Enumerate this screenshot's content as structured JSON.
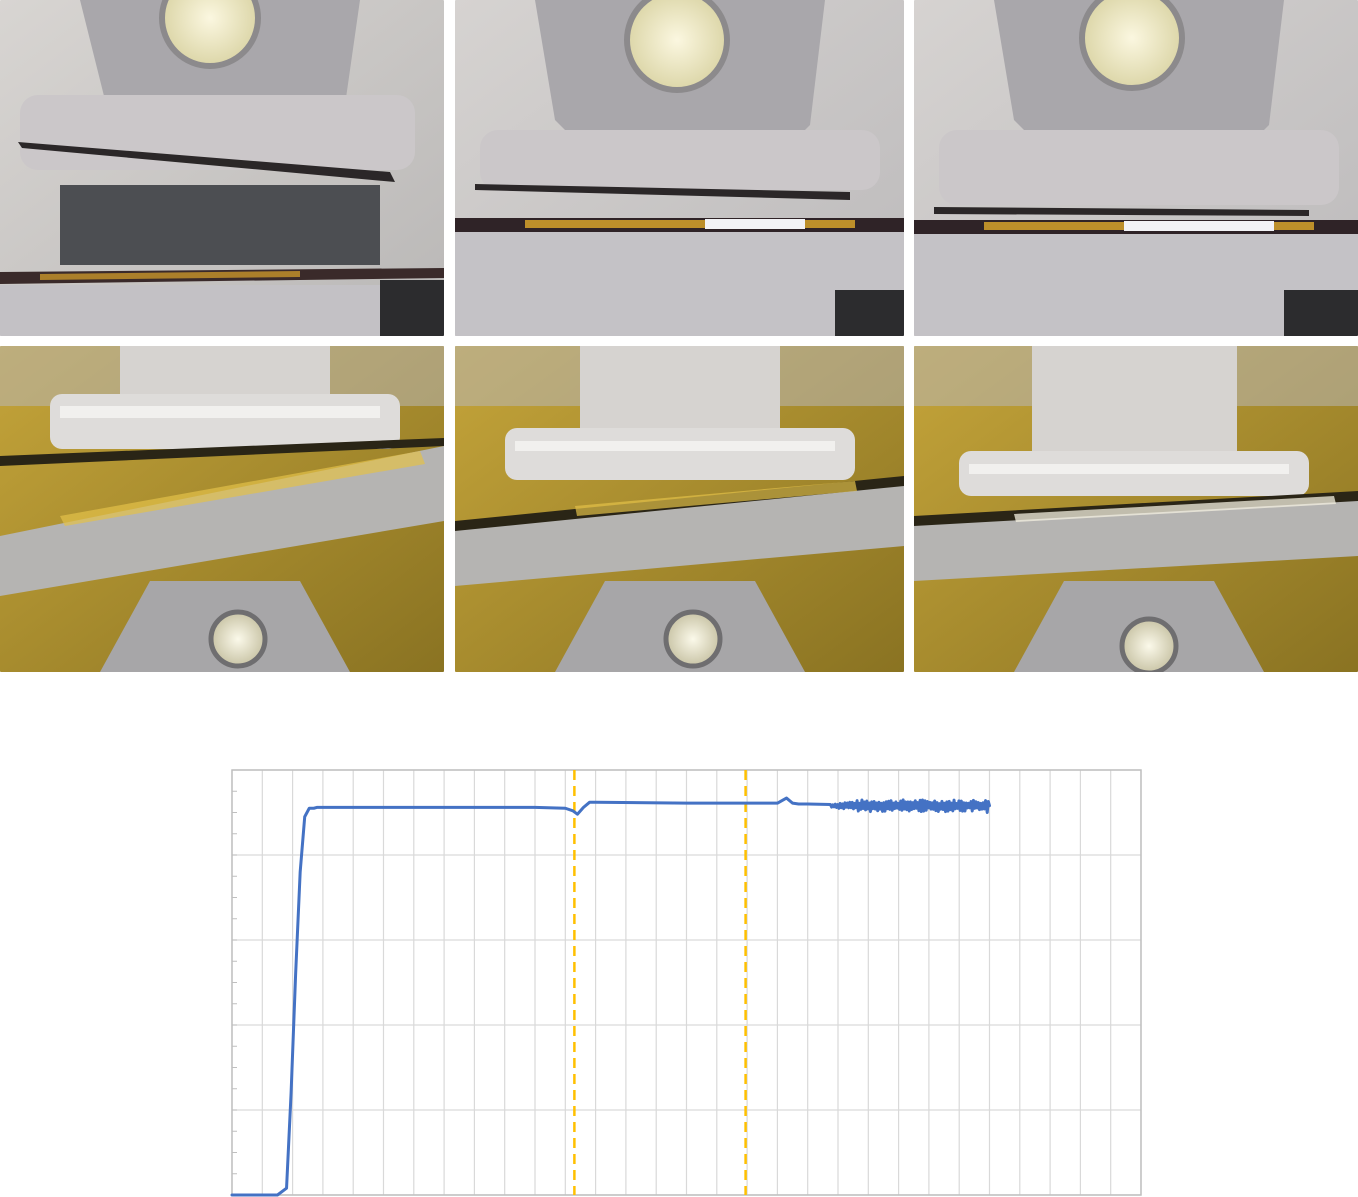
{
  "photos": {
    "rows": 2,
    "cols": 3,
    "panels": [
      {
        "row": 1,
        "col": 1,
        "name": "side-view-separated"
      },
      {
        "row": 1,
        "col": 2,
        "name": "side-view-contact"
      },
      {
        "row": 1,
        "col": 3,
        "name": "side-view-pressed"
      },
      {
        "row": 2,
        "col": 1,
        "name": "angled-view-separated"
      },
      {
        "row": 2,
        "col": 2,
        "name": "angled-view-contact"
      },
      {
        "row": 2,
        "col": 3,
        "name": "angled-view-pressed"
      }
    ],
    "colors": {
      "background_row1": "#d9d6d4",
      "background_row2": "#c9a93a",
      "fixture": "#a8a8ad",
      "hole": "#f4f0cf",
      "film_edge": "#d8a52a"
    }
  },
  "chart_data": {
    "type": "line",
    "title": "",
    "xlabel": "",
    "ylabel": "",
    "xlim": [
      0,
      60
    ],
    "ylim": [
      0,
      5
    ],
    "x_major_step": 2,
    "y_major_step": 1,
    "y_minor_step": 0.25,
    "grid": true,
    "tick_labels_visible": false,
    "series": [
      {
        "color": "#4472c4",
        "x": [
          0,
          1,
          2,
          3,
          3.6,
          3.9,
          4.2,
          4.5,
          4.8,
          5.1,
          5.4,
          5.6,
          6.0,
          10,
          15,
          20,
          22,
          22.5,
          22.8,
          23.2,
          23.6,
          24,
          30,
          35,
          36,
          36.6,
          37,
          37.4,
          38,
          40,
          42,
          44,
          46,
          48,
          50
        ],
        "y": [
          0,
          0,
          0,
          0,
          0.08,
          1.2,
          2.6,
          3.8,
          4.45,
          4.55,
          4.55,
          4.56,
          4.56,
          4.56,
          4.56,
          4.56,
          4.55,
          4.52,
          4.48,
          4.56,
          4.62,
          4.62,
          4.61,
          4.61,
          4.61,
          4.67,
          4.61,
          4.6,
          4.6,
          4.6,
          4.59,
          4.59,
          4.58,
          4.58,
          4.58
        ]
      }
    ],
    "noise_region": {
      "x_start": 39.5,
      "x_end": 49.8,
      "center": 4.58,
      "amplitude": 0.07
    },
    "vlines": [
      {
        "x": 22.6,
        "color": "#ffc000",
        "style": "dashed"
      },
      {
        "x": 33.9,
        "color": "#ffc000",
        "style": "dashed"
      }
    ],
    "colors": {
      "grid": "#d9d9d9",
      "axis": "#bfbfbf"
    }
  }
}
